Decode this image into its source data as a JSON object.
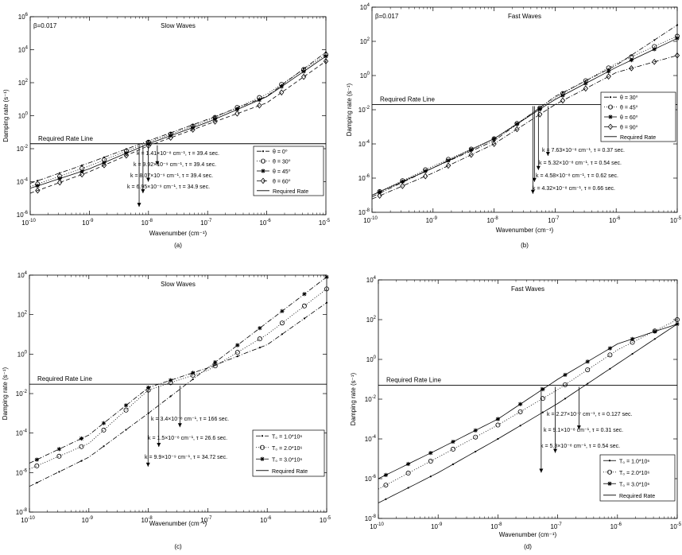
{
  "chart_data": [
    {
      "panel_id": "a",
      "type": "line",
      "caption": "(a)",
      "beta_label": "β=0.017",
      "title": "Slow Waves",
      "xlabel": "Wavenumber (cm⁻¹)",
      "ylabel": "Damping rate (s⁻¹)",
      "x_scale": "log",
      "y_scale": "log",
      "xlim": [
        1e-10,
        1e-05
      ],
      "ylim": [
        1e-06,
        1000000.0
      ],
      "x_ticks": [
        {
          "v": 1e-10,
          "b": "10",
          "e": "-10"
        },
        {
          "v": 1e-09,
          "b": "10",
          "e": "-9"
        },
        {
          "v": 1e-08,
          "b": "10",
          "e": "-8"
        },
        {
          "v": 1e-07,
          "b": "10",
          "e": "-7"
        },
        {
          "v": 1e-06,
          "b": "10",
          "e": "-6"
        },
        {
          "v": 1e-05,
          "b": "10",
          "e": "-5"
        }
      ],
      "y_ticks": [
        {
          "v": 1e-06,
          "b": "10",
          "e": "-6"
        },
        {
          "v": 0.0001,
          "b": "10",
          "e": "-4"
        },
        {
          "v": 0.01,
          "b": "10",
          "e": "-2"
        },
        {
          "v": 1,
          "b": "10",
          "e": "0"
        },
        {
          "v": 100.0,
          "b": "10",
          "e": "2"
        },
        {
          "v": 10000.0,
          "b": "10",
          "e": "4"
        },
        {
          "v": 1000000.0,
          "b": "10",
          "e": "6"
        }
      ],
      "required_rate": 0.02,
      "required_label": "Required Rate Line",
      "legend": {
        "position": "lower-right"
      },
      "series": [
        {
          "name": "θ = 0⁰",
          "style": "dashdot",
          "marker": "dot",
          "x": [
            1e-10,
            1e-09,
            1e-08,
            1e-07,
            1e-06,
            1e-05
          ],
          "y": [
            8e-05,
            0.0014,
            0.03,
            0.6,
            15,
            7000
          ]
        },
        {
          "name": "θ = 30⁰",
          "style": "dotted",
          "marker": "circle",
          "x": [
            1e-10,
            1e-09,
            1e-08,
            1e-07,
            1e-06,
            1e-05
          ],
          "y": [
            5e-05,
            0.0009,
            0.025,
            0.5,
            20,
            5000
          ]
        },
        {
          "name": "θ = 45⁰",
          "style": "solid",
          "marker": "star",
          "x": [
            1e-10,
            1e-09,
            1e-08,
            1e-07,
            1e-06,
            1e-05
          ],
          "y": [
            4e-05,
            0.0006,
            0.02,
            0.4,
            14,
            4000
          ]
        },
        {
          "name": "θ = 60⁰",
          "style": "dashed",
          "marker": "diamond",
          "x": [
            1e-10,
            1e-09,
            1e-08,
            1e-07,
            1e-06,
            1e-05
          ],
          "y": [
            2e-05,
            0.0004,
            0.015,
            0.3,
            6,
            2000
          ]
        }
      ],
      "required_legend": "Required Rate",
      "annotations": [
        {
          "k": 1.41e-08,
          "k_text": "k = 1.41×10⁻⁸ cm⁻¹, τ = 39.4 sec.",
          "arrow_to": 0.001
        },
        {
          "k": 9.92e-09,
          "k_text": "k = 9.92×10⁻⁹ cm⁻¹, τ = 39.4 sec.",
          "arrow_to": 0.0001
        },
        {
          "k": 8.07e-09,
          "k_text": "k = 8.07×10⁻⁹ cm⁻¹, τ = 39.4 sec.",
          "arrow_to": 2e-05
        },
        {
          "k": 6.95e-09,
          "k_text": "k = 6.95×10⁻⁹ cm⁻¹, τ = 34.9 sec.",
          "arrow_to": 3e-06
        }
      ]
    },
    {
      "panel_id": "b",
      "type": "line",
      "caption": "(b)",
      "beta_label": "β=0.017",
      "title": "Fast Waves",
      "xlabel": "Wavenumber (cm⁻¹)",
      "ylabel": "Damping rate (s⁻¹)",
      "x_scale": "log",
      "y_scale": "log",
      "xlim": [
        1e-10,
        1e-05
      ],
      "ylim": [
        1e-08,
        10000.0
      ],
      "x_ticks": [
        {
          "v": 1e-10,
          "b": "10",
          "e": "-10"
        },
        {
          "v": 1e-09,
          "b": "10",
          "e": "-9"
        },
        {
          "v": 1e-08,
          "b": "10",
          "e": "-8"
        },
        {
          "v": 1e-07,
          "b": "10",
          "e": "-7"
        },
        {
          "v": 1e-06,
          "b": "10",
          "e": "-6"
        },
        {
          "v": 1e-05,
          "b": "10",
          "e": "-5"
        }
      ],
      "y_ticks": [
        {
          "v": 1e-08,
          "b": "10",
          "e": "-8"
        },
        {
          "v": 1e-06,
          "b": "10",
          "e": "-6"
        },
        {
          "v": 0.0001,
          "b": "10",
          "e": "-4"
        },
        {
          "v": 0.01,
          "b": "10",
          "e": "-2"
        },
        {
          "v": 1,
          "b": "10",
          "e": "0"
        },
        {
          "v": 100.0,
          "b": "10",
          "e": "2"
        },
        {
          "v": 10000.0,
          "b": "10",
          "e": "4"
        }
      ],
      "required_rate": 0.02,
      "required_label": "Required Rate Line",
      "legend": {
        "position": "right"
      },
      "series": [
        {
          "name": "θ = 30⁰",
          "style": "dashdot",
          "marker": "dot",
          "x": [
            1e-10,
            1e-09,
            1e-08,
            1e-07,
            1e-06,
            1e-05
          ],
          "y": [
            8e-08,
            4e-06,
            0.00015,
            0.06,
            4,
            900
          ]
        },
        {
          "name": "θ = 45⁰",
          "style": "dotted",
          "marker": "circle",
          "x": [
            1e-10,
            1e-09,
            1e-08,
            1e-07,
            1e-06,
            1e-05
          ],
          "y": [
            1e-07,
            5e-06,
            0.0002,
            0.05,
            5,
            200
          ]
        },
        {
          "name": "θ = 60⁰",
          "style": "solid",
          "marker": "star",
          "x": [
            1e-10,
            1e-09,
            1e-08,
            1e-07,
            1e-06,
            1e-05
          ],
          "y": [
            1e-07,
            4e-06,
            0.0002,
            0.04,
            3,
            150
          ]
        },
        {
          "name": "θ = 90⁰",
          "style": "dashdot",
          "marker": "diamond",
          "x": [
            1e-10,
            1e-09,
            1e-08,
            1e-07,
            1e-06,
            1e-05
          ],
          "y": [
            6e-08,
            2e-06,
            0.0001,
            0.02,
            1.5,
            15
          ]
        }
      ],
      "required_legend": "Required Rate",
      "annotations": [
        {
          "k": 7.63e-08,
          "k_text": "k = 7.63×10⁻⁸ cm⁻¹, τ = 0.37 sec.",
          "arrow_to": 2e-05
        },
        {
          "k": 5.32e-08,
          "k_text": "k = 5.32×10⁻⁸ cm⁻¹, τ = 0.54 sec.",
          "arrow_to": 3e-06
        },
        {
          "k": 4.58e-08,
          "k_text": "k = 4.58×10⁻⁸ cm⁻¹, τ = 0.62 sec.",
          "arrow_to": 6e-07
        },
        {
          "k": 4.32e-08,
          "k_text": "k = 4.32×10⁻⁸ cm⁻¹, τ = 0.66 sec.",
          "arrow_to": 1.2e-07
        }
      ]
    },
    {
      "panel_id": "c",
      "type": "line",
      "caption": "(c)",
      "beta_label": "",
      "title": "Slow Waves",
      "xlabel": "Wavenumber (cm⁻¹)",
      "ylabel": "Damping rate (s⁻¹)",
      "x_scale": "log",
      "y_scale": "log",
      "xlim": [
        1e-10,
        1e-05
      ],
      "ylim": [
        1e-08,
        10000.0
      ],
      "x_ticks": [
        {
          "v": 1e-10,
          "b": "10",
          "e": "-10"
        },
        {
          "v": 1e-09,
          "b": "10",
          "e": "-9"
        },
        {
          "v": 1e-08,
          "b": "10",
          "e": "-8"
        },
        {
          "v": 1e-07,
          "b": "10",
          "e": "-7"
        },
        {
          "v": 1e-06,
          "b": "10",
          "e": "-6"
        },
        {
          "v": 1e-05,
          "b": "10",
          "e": "-5"
        }
      ],
      "y_ticks": [
        {
          "v": 1e-08,
          "b": "10",
          "e": "-8"
        },
        {
          "v": 1e-06,
          "b": "10",
          "e": "-6"
        },
        {
          "v": 0.0001,
          "b": "10",
          "e": "-4"
        },
        {
          "v": 0.01,
          "b": "10",
          "e": "-2"
        },
        {
          "v": 1,
          "b": "10",
          "e": "0"
        },
        {
          "v": 100.0,
          "b": "10",
          "e": "2"
        },
        {
          "v": 10000.0,
          "b": "10",
          "e": "4"
        }
      ],
      "required_rate": 0.03,
      "required_label": "Required Rate Line",
      "legend": {
        "position": "lower-right"
      },
      "series": [
        {
          "name": "T₀ = 1.0*10⁶",
          "style": "dashdot",
          "marker": "dot",
          "x": [
            1e-10,
            1e-09,
            1e-08,
            1e-07,
            1e-06,
            1e-05
          ],
          "y": [
            2e-07,
            6e-06,
            0.001,
            0.2,
            3,
            400
          ]
        },
        {
          "name": "T₀ = 2.0*10⁶",
          "style": "dotted",
          "marker": "circle",
          "x": [
            1e-10,
            1e-09,
            1e-08,
            1e-07,
            1e-06,
            1e-05
          ],
          "y": [
            1.5e-06,
            3e-05,
            0.015,
            0.15,
            10,
            2000
          ]
        },
        {
          "name": "T₀ = 3.0*10⁶",
          "style": "dashdot",
          "marker": "star",
          "x": [
            1e-10,
            1e-09,
            1e-08,
            1e-07,
            1e-06,
            1e-05
          ],
          "y": [
            3e-06,
            8e-05,
            0.02,
            0.2,
            40,
            8000
          ]
        }
      ],
      "required_legend": "Required Rate",
      "annotations": [
        {
          "k": 3.4e-08,
          "k_text": "k = 3.4×10⁻⁸ cm⁻¹, τ = 166 sec.",
          "arrow_to": 0.0002
        },
        {
          "k": 1.5e-08,
          "k_text": "k = 1.5×10⁻⁸ cm⁻¹, τ = 26.6 sec.",
          "arrow_to": 2e-05
        },
        {
          "k": 9.9e-09,
          "k_text": "k = 9.9×10⁻⁹ cm⁻¹, τ = 34.72 sec.",
          "arrow_to": 2e-06
        }
      ]
    },
    {
      "panel_id": "d",
      "type": "line",
      "caption": "(d)",
      "beta_label": "",
      "title": "Fast Waves",
      "xlabel": "Wavenumber (cm⁻¹)",
      "ylabel": "Damping rate (s⁻¹)",
      "x_scale": "log",
      "y_scale": "log",
      "xlim": [
        1e-10,
        1e-05
      ],
      "ylim": [
        1e-08,
        10000.0
      ],
      "x_ticks": [
        {
          "v": 1e-10,
          "b": "10",
          "e": "-10"
        },
        {
          "v": 1e-09,
          "b": "10",
          "e": "-9"
        },
        {
          "v": 1e-08,
          "b": "10",
          "e": "-8"
        },
        {
          "v": 1e-07,
          "b": "10",
          "e": "-7"
        },
        {
          "v": 1e-06,
          "b": "10",
          "e": "-6"
        },
        {
          "v": 1e-05,
          "b": "10",
          "e": "-5"
        }
      ],
      "y_ticks": [
        {
          "v": 1e-08,
          "b": "10",
          "e": "-8"
        },
        {
          "v": 1e-06,
          "b": "10",
          "e": "-6"
        },
        {
          "v": 0.0001,
          "b": "10",
          "e": "-4"
        },
        {
          "v": 0.01,
          "b": "10",
          "e": "-2"
        },
        {
          "v": 1,
          "b": "10",
          "e": "0"
        },
        {
          "v": 100.0,
          "b": "10",
          "e": "2"
        },
        {
          "v": 10000.0,
          "b": "10",
          "e": "4"
        }
      ],
      "required_rate": 0.05,
      "required_label": "Required Rate Line",
      "legend": {
        "position": "lower-right"
      },
      "series": [
        {
          "name": "T₀ = 1.0*10⁶",
          "style": "solid",
          "marker": "dot",
          "x": [
            1e-10,
            1e-09,
            1e-08,
            1e-07,
            1e-06,
            1e-05
          ],
          "y": [
            6e-08,
            2e-06,
            0.0001,
            0.006,
            0.6,
            60
          ]
        },
        {
          "name": "T₀ = 2.0*10⁶",
          "style": "dotted",
          "marker": "circle",
          "x": [
            1e-10,
            1e-09,
            1e-08,
            1e-07,
            1e-06,
            1e-05
          ],
          "y": [
            3e-07,
            1.2e-05,
            0.0005,
            0.03,
            3,
            100
          ]
        },
        {
          "name": "T₀ = 3.0*10⁶",
          "style": "solid",
          "marker": "star",
          "x": [
            1e-10,
            1e-09,
            1e-08,
            1e-07,
            1e-06,
            1e-05
          ],
          "y": [
            1e-06,
            3e-05,
            0.001,
            0.1,
            6,
            60
          ]
        }
      ],
      "required_legend": "Required Rate",
      "annotations": [
        {
          "k": 2.27e-07,
          "k_text": "k = 2.27×10⁻⁷ cm⁻¹, τ = 0.127 sec.",
          "arrow_to": 0.0003
        },
        {
          "k": 9.1e-08,
          "k_text": "k = 9.1×10⁻⁸ cm⁻¹, τ = 0.31 sec.",
          "arrow_to": 2e-05
        },
        {
          "k": 5.3e-08,
          "k_text": "k = 5.3×10⁻⁸ cm⁻¹, τ = 0.54 sec.",
          "arrow_to": 2e-06
        }
      ]
    }
  ]
}
